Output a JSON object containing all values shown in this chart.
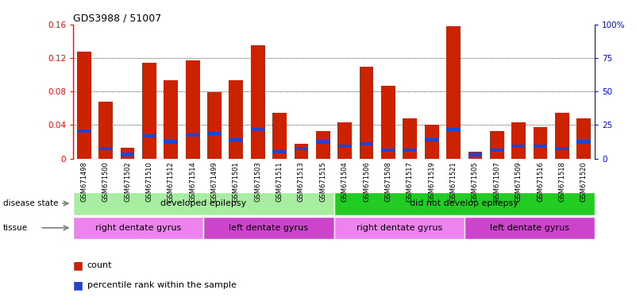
{
  "title": "GDS3988 / 51007",
  "samples": [
    "GSM671498",
    "GSM671500",
    "GSM671502",
    "GSM671510",
    "GSM671512",
    "GSM671514",
    "GSM671499",
    "GSM671501",
    "GSM671503",
    "GSM671511",
    "GSM671513",
    "GSM671515",
    "GSM671504",
    "GSM671506",
    "GSM671508",
    "GSM671517",
    "GSM671519",
    "GSM671521",
    "GSM671505",
    "GSM671507",
    "GSM671509",
    "GSM671516",
    "GSM671518",
    "GSM671520"
  ],
  "count": [
    0.128,
    0.068,
    0.013,
    0.114,
    0.093,
    0.117,
    0.079,
    0.093,
    0.135,
    0.055,
    0.018,
    0.033,
    0.043,
    0.11,
    0.087,
    0.048,
    0.04,
    0.158,
    0.008,
    0.033,
    0.043,
    0.038,
    0.055,
    0.048
  ],
  "percentile": [
    0.033,
    0.012,
    0.005,
    0.027,
    0.02,
    0.028,
    0.03,
    0.022,
    0.035,
    0.008,
    0.012,
    0.02,
    0.015,
    0.018,
    0.01,
    0.01,
    0.022,
    0.035,
    0.005,
    0.01,
    0.015,
    0.015,
    0.012,
    0.02
  ],
  "disease_state_groups": [
    {
      "label": "developed epilepsy",
      "start": 0,
      "end": 12,
      "color": "#A8EEA0"
    },
    {
      "label": "did not develop epilepsy",
      "start": 12,
      "end": 24,
      "color": "#22CC22"
    }
  ],
  "tissue_groups": [
    {
      "label": "right dentate gyrus",
      "start": 0,
      "end": 6,
      "color": "#EE82EE"
    },
    {
      "label": "left dentate gyrus",
      "start": 6,
      "end": 12,
      "color": "#CC44CC"
    },
    {
      "label": "right dentate gyrus",
      "start": 12,
      "end": 18,
      "color": "#EE82EE"
    },
    {
      "label": "left dentate gyrus",
      "start": 18,
      "end": 24,
      "color": "#CC44CC"
    }
  ],
  "bar_color": "#CC2200",
  "blue_color": "#2244CC",
  "ylim_left": [
    0,
    0.16
  ],
  "ylim_right": [
    0,
    100
  ],
  "yticks_left": [
    0,
    0.04,
    0.08,
    0.12,
    0.16
  ],
  "yticks_right": [
    0,
    25,
    50,
    75,
    100
  ],
  "blue_bar_height": 0.004,
  "bar_width": 0.65
}
